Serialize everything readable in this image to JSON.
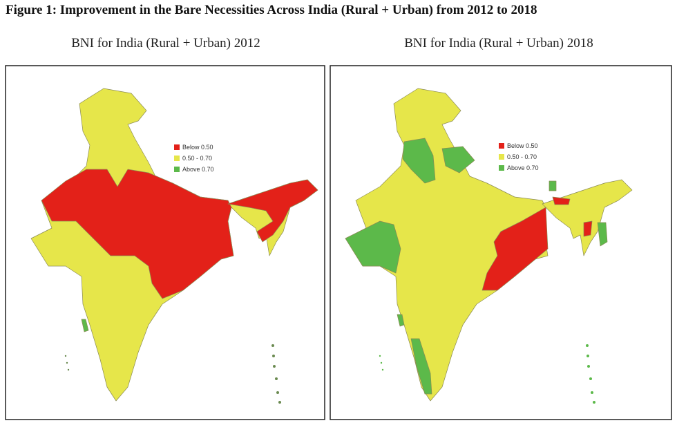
{
  "title": "Figure 1: Improvement in the Bare Necessities Across India (Rural + Urban) from 2012 to 2018",
  "legend": [
    {
      "label": "Below 0.50",
      "color": "#e32119"
    },
    {
      "label": "0.50 - 0.70",
      "color": "#e6e64a"
    },
    {
      "label": "Above 0.70",
      "color": "#5cb94a"
    }
  ],
  "panels": [
    {
      "subtitle": "BNI for India (Rural + Urban) 2012"
    },
    {
      "subtitle": "BNI for India (Rural + Urban) 2018"
    }
  ]
}
